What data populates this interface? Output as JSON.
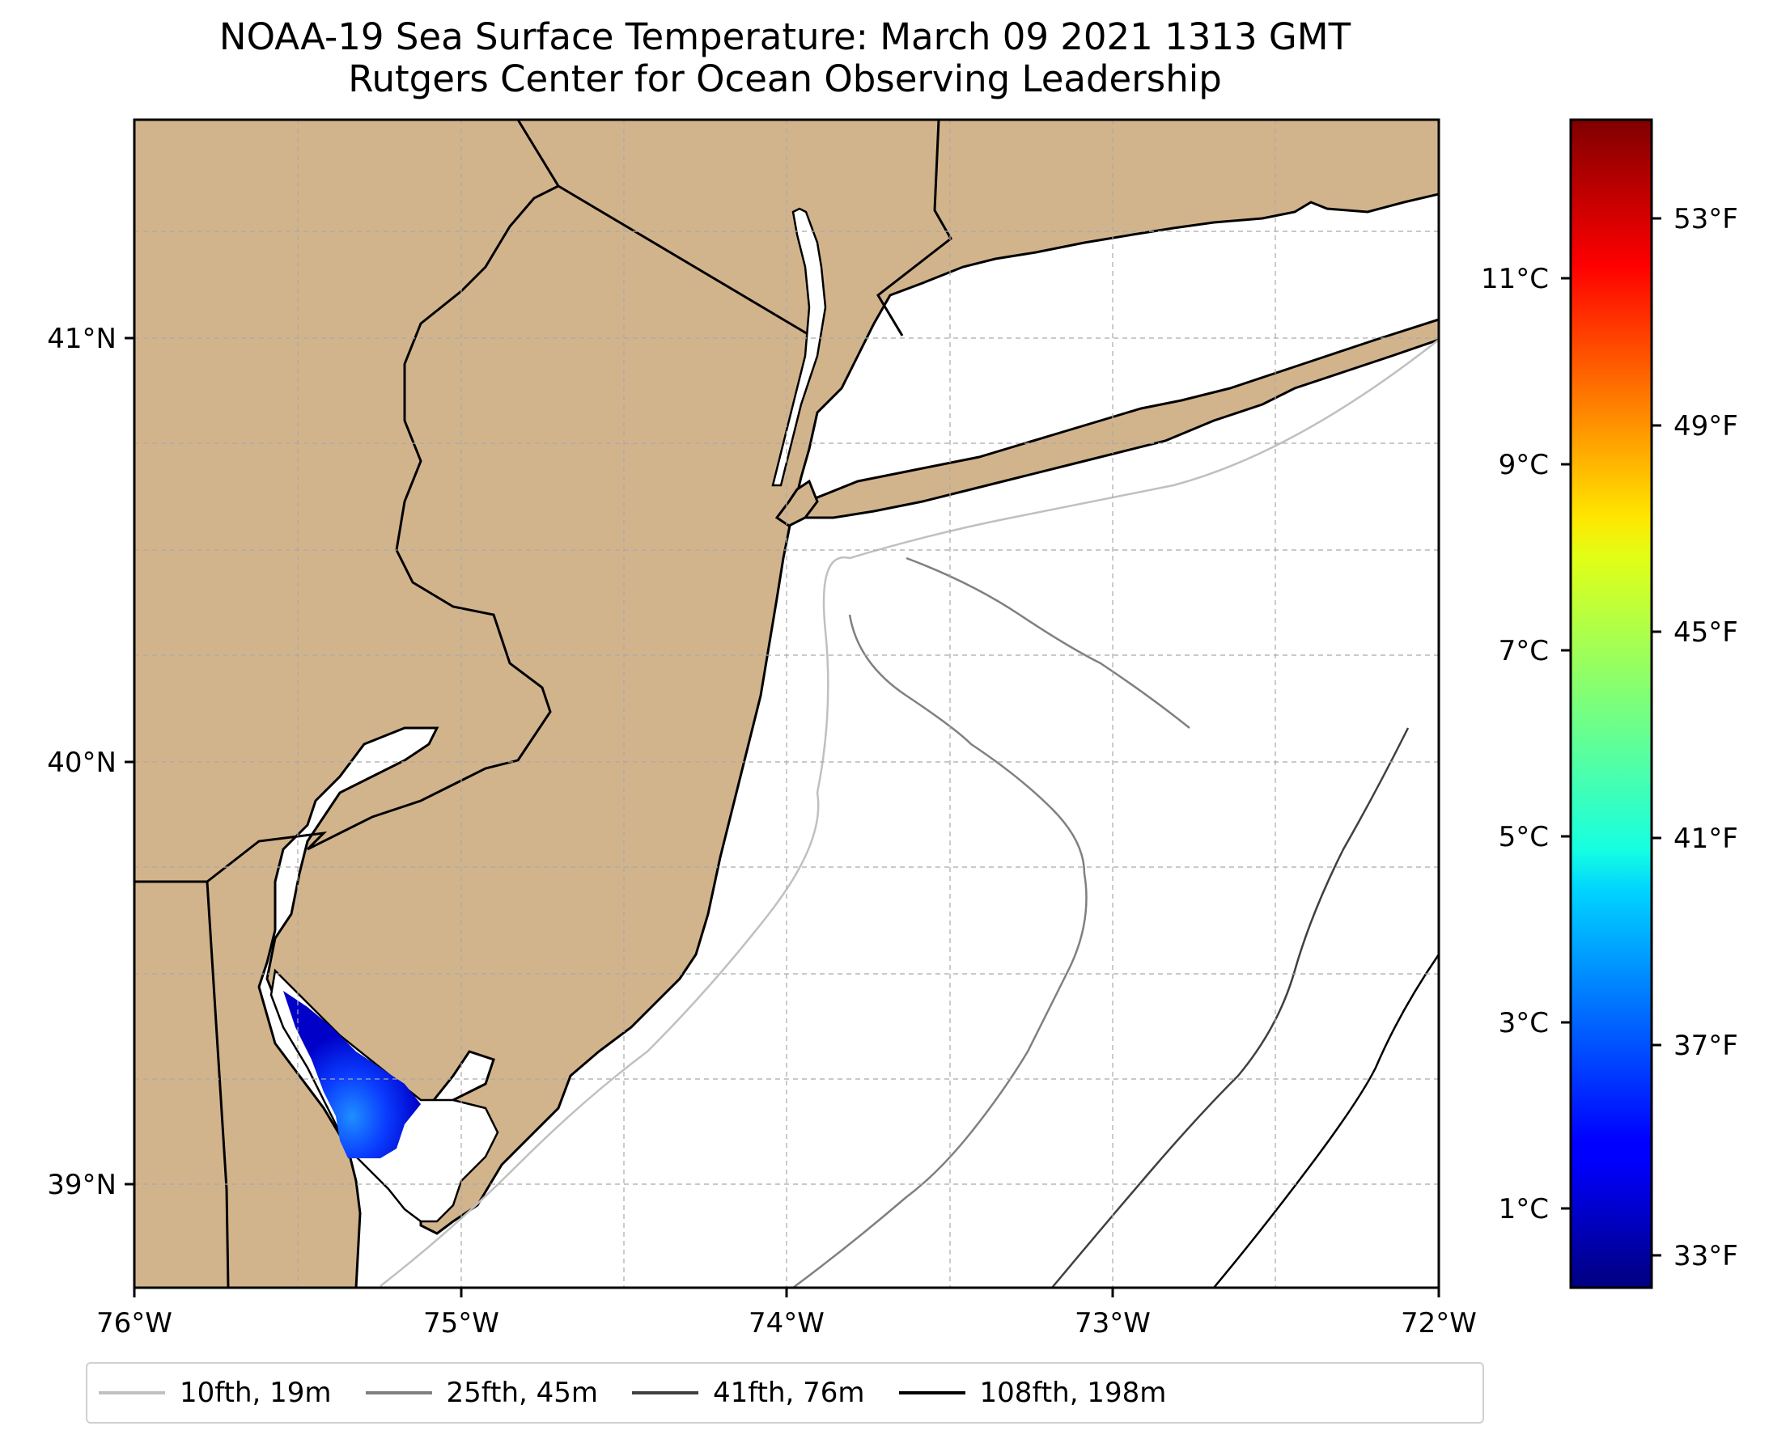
{
  "title": {
    "line1": "NOAA-19 Sea Surface Temperature: March 09 2021 1313 GMT",
    "line2": "Rutgers Center for Ocean Observing Leadership"
  },
  "map": {
    "lon_range": [
      -76,
      -72
    ],
    "lat_range": [
      38.75,
      41.55
    ],
    "land_color": "#d2b48c",
    "ocean_color": "#ffffff",
    "x_ticks": [
      "76°W",
      "75°W",
      "74°W",
      "73°W",
      "72°W"
    ],
    "y_ticks": [
      "41°N",
      "40°N",
      "39°N"
    ],
    "gridlines": "dashed"
  },
  "colorbar": {
    "colormap": "jet",
    "celsius_ticks": [
      "1°C",
      "3°C",
      "5°C",
      "7°C",
      "9°C",
      "11°C"
    ],
    "fahrenheit_ticks": [
      "33°F",
      "37°F",
      "41°F",
      "45°F",
      "49°F",
      "53°F"
    ]
  },
  "legend": [
    {
      "label": "10fth, 19m",
      "color": "#c0c0c0"
    },
    {
      "label": "25fth, 45m",
      "color": "#808080"
    },
    {
      "label": "41fth, 76m",
      "color": "#404040"
    },
    {
      "label": "108fth, 198m",
      "color": "#000000"
    }
  ],
  "sst_patch": {
    "region": "Delaware Bay",
    "temperature_range_f": [
      32,
      37
    ]
  }
}
